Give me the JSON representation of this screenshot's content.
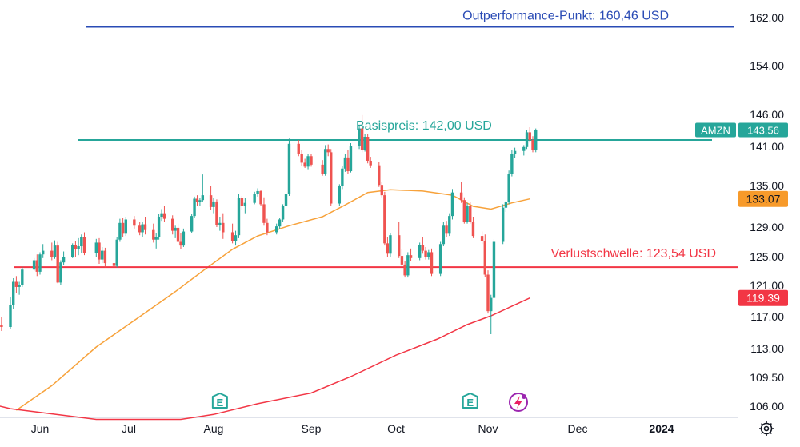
{
  "chart_data": {
    "type": "candlestick",
    "symbol": "AMZN",
    "last_price": "143.56",
    "y_axis": {
      "ticks": [
        "162.00",
        "154.00",
        "146.00",
        "141.00",
        "135.00",
        "129.00",
        "125.00",
        "121.00",
        "117.00",
        "113.00",
        "109.50",
        "106.00"
      ]
    },
    "x_axis": {
      "ticks": [
        {
          "label": "Jun",
          "date": "2023-06-01"
        },
        {
          "label": "Jul",
          "date": "2023-07-01"
        },
        {
          "label": "Aug",
          "date": "2023-08-01"
        },
        {
          "label": "Sep",
          "date": "2023-09-01"
        },
        {
          "label": "Oct",
          "date": "2023-10-01"
        },
        {
          "label": "Nov",
          "date": "2023-11-01"
        },
        {
          "label": "Dec",
          "date": "2023-12-01"
        },
        {
          "label": "2024",
          "date": "2024-01-01",
          "bold": true
        }
      ]
    },
    "levels": [
      {
        "label": "Outperformance-Punkt: 160,46 USD",
        "value": 160.46,
        "color": "#2a4bb5"
      },
      {
        "label": "Basispreis: 142,00 USD",
        "value": 142.0,
        "color": "#26a69a"
      },
      {
        "label": "Verlustschwelle: 123,54 USD",
        "value": 123.54,
        "color": "#f23645"
      }
    ],
    "moving_averages": [
      {
        "value_label": "133.07",
        "last": 133.07,
        "color": "#f7a23b",
        "points": [
          [
            "2023-05-24",
            105.5
          ],
          [
            "2023-06-05",
            108.5
          ],
          [
            "2023-06-20",
            113.2
          ],
          [
            "2023-07-05",
            117.0
          ],
          [
            "2023-07-18",
            120.2
          ],
          [
            "2023-07-28",
            123.0
          ],
          [
            "2023-08-07",
            126.0
          ],
          [
            "2023-08-15",
            127.8
          ],
          [
            "2023-08-25",
            129.2
          ],
          [
            "2023-09-05",
            130.5
          ],
          [
            "2023-09-13",
            132.2
          ],
          [
            "2023-09-21",
            134.0
          ],
          [
            "2023-09-29",
            134.4
          ],
          [
            "2023-10-10",
            134.2
          ],
          [
            "2023-10-20",
            133.6
          ],
          [
            "2023-10-27",
            132.0
          ],
          [
            "2023-11-02",
            131.6
          ],
          [
            "2023-11-09",
            132.5
          ],
          [
            "2023-11-15",
            133.07
          ]
        ]
      },
      {
        "value_label": "119.39",
        "last": 119.39,
        "color": "#f23645",
        "points": [
          [
            "2023-05-15",
            106.3
          ],
          [
            "2023-05-22",
            105.7
          ],
          [
            "2023-06-20",
            104.4
          ],
          [
            "2023-07-20",
            104.4
          ],
          [
            "2023-08-01",
            105.0
          ],
          [
            "2023-08-15",
            106.3
          ],
          [
            "2023-09-01",
            107.6
          ],
          [
            "2023-09-15",
            109.6
          ],
          [
            "2023-10-01",
            112.2
          ],
          [
            "2023-10-15",
            114.2
          ],
          [
            "2023-10-25",
            116.0
          ],
          [
            "2023-11-02",
            117.1
          ],
          [
            "2023-11-15",
            119.39
          ]
        ]
      }
    ],
    "earnings_markers": [
      {
        "label": "E",
        "date": "2023-08-03"
      },
      {
        "label": "E",
        "date": "2023-10-26"
      }
    ],
    "candles": [
      [
        "2023-05-11",
        119.5,
        120.6,
        118.0,
        118.3
      ],
      [
        "2023-05-12",
        118.3,
        118.9,
        116.5,
        117.0
      ],
      [
        "2023-05-15",
        117.0,
        117.8,
        115.5,
        116.0
      ],
      [
        "2023-05-16",
        116.0,
        117.2,
        114.0,
        114.5
      ],
      [
        "2023-05-17",
        114.5,
        115.8,
        113.6,
        115.2
      ],
      [
        "2023-05-18",
        115.2,
        116.5,
        114.5,
        116.0
      ],
      [
        "2023-05-19",
        116.0,
        117.0,
        115.2,
        115.7
      ],
      [
        "2023-05-22",
        115.7,
        119.5,
        115.5,
        118.5
      ],
      [
        "2023-05-23",
        118.5,
        122.0,
        118.0,
        121.5
      ],
      [
        "2023-05-24",
        121.5,
        122.3,
        120.0,
        120.8
      ],
      [
        "2023-05-25",
        120.8,
        121.5,
        119.8,
        121.0
      ],
      [
        "2023-05-26",
        121.0,
        123.6,
        120.8,
        123.2
      ],
      [
        "2023-05-30",
        123.2,
        124.8,
        123.0,
        124.5
      ],
      [
        "2023-05-31",
        124.5,
        125.3,
        122.3,
        122.9
      ],
      [
        "2023-06-01",
        122.9,
        125.6,
        122.5,
        125.3
      ],
      [
        "2023-06-02",
        125.3,
        126.7,
        124.8,
        125.8
      ],
      [
        "2023-06-05",
        125.8,
        126.9,
        124.5,
        124.9
      ],
      [
        "2023-06-06",
        124.9,
        127.2,
        124.7,
        126.5
      ],
      [
        "2023-06-07",
        126.5,
        127.0,
        121.3,
        121.4
      ],
      [
        "2023-06-08",
        121.4,
        124.5,
        121.0,
        124.2
      ],
      [
        "2023-06-09",
        124.2,
        125.7,
        123.8,
        124.9
      ],
      [
        "2023-06-12",
        124.9,
        126.8,
        124.8,
        126.6
      ],
      [
        "2023-06-13",
        126.6,
        127.1,
        125.0,
        126.0
      ],
      [
        "2023-06-14",
        126.0,
        127.5,
        125.2,
        126.4
      ],
      [
        "2023-06-15",
        126.4,
        128.0,
        125.5,
        127.7
      ],
      [
        "2023-06-16",
        127.7,
        128.3,
        125.2,
        125.5
      ],
      [
        "2023-06-20",
        125.5,
        127.4,
        125.0,
        126.9
      ],
      [
        "2023-06-21",
        126.9,
        127.5,
        124.0,
        124.6
      ],
      [
        "2023-06-22",
        124.6,
        126.3,
        124.1,
        125.8
      ],
      [
        "2023-06-23",
        125.8,
        126.2,
        123.5,
        124.1
      ],
      [
        "2023-06-26",
        124.1,
        125.0,
        123.2,
        123.7
      ],
      [
        "2023-06-27",
        123.7,
        127.6,
        123.5,
        127.3
      ],
      [
        "2023-06-28",
        127.3,
        130.2,
        127.0,
        129.6
      ],
      [
        "2023-06-29",
        129.6,
        130.3,
        127.6,
        128.1
      ],
      [
        "2023-06-30",
        128.1,
        130.5,
        127.8,
        130.1
      ],
      [
        "2023-07-03",
        130.1,
        130.6,
        128.8,
        129.2
      ],
      [
        "2023-07-05",
        129.2,
        129.8,
        127.9,
        128.3
      ],
      [
        "2023-07-06",
        128.3,
        129.8,
        127.6,
        129.4
      ],
      [
        "2023-07-07",
        129.4,
        130.5,
        128.0,
        128.6
      ],
      [
        "2023-07-10",
        128.6,
        129.5,
        126.9,
        127.3
      ],
      [
        "2023-07-11",
        127.3,
        128.2,
        126.1,
        127.6
      ],
      [
        "2023-07-12",
        127.6,
        130.9,
        127.3,
        130.5
      ],
      [
        "2023-07-13",
        130.5,
        131.6,
        129.9,
        131.0
      ],
      [
        "2023-07-14",
        131.0,
        132.1,
        129.8,
        130.2
      ],
      [
        "2023-07-17",
        130.2,
        130.7,
        128.0,
        128.5
      ],
      [
        "2023-07-18",
        128.5,
        129.2,
        127.5,
        128.9
      ],
      [
        "2023-07-19",
        128.9,
        129.5,
        126.6,
        127.0
      ],
      [
        "2023-07-20",
        127.0,
        128.2,
        126.0,
        126.5
      ],
      [
        "2023-07-21",
        126.5,
        128.8,
        126.3,
        128.4
      ],
      [
        "2023-07-24",
        128.4,
        130.9,
        128.2,
        130.6
      ],
      [
        "2023-07-25",
        130.6,
        133.4,
        130.3,
        133.1
      ],
      [
        "2023-07-26",
        133.1,
        133.6,
        132.0,
        132.6
      ],
      [
        "2023-07-27",
        132.6,
        133.2,
        132.0,
        132.9
      ],
      [
        "2023-07-28",
        132.9,
        136.7,
        132.6,
        133.6
      ],
      [
        "2023-07-31",
        133.6,
        135.0,
        131.5,
        131.9
      ],
      [
        "2023-08-01",
        131.9,
        133.2,
        131.0,
        132.7
      ],
      [
        "2023-08-02",
        132.7,
        133.0,
        129.0,
        129.3
      ],
      [
        "2023-08-03",
        129.3,
        130.5,
        128.5,
        129.6
      ],
      [
        "2023-08-04",
        129.6,
        131.0,
        127.4,
        128.3
      ],
      [
        "2023-08-07",
        128.3,
        129.5,
        126.8,
        127.1
      ],
      [
        "2023-08-08",
        127.1,
        128.5,
        126.5,
        127.9
      ],
      [
        "2023-08-09",
        127.9,
        133.8,
        127.5,
        133.2
      ],
      [
        "2023-08-10",
        133.2,
        133.5,
        131.5,
        132.0
      ],
      [
        "2023-08-11",
        132.0,
        133.2,
        131.0,
        132.5
      ],
      [
        "2023-08-14",
        132.5,
        134.1,
        132.3,
        133.8
      ],
      [
        "2023-08-15",
        133.8,
        134.6,
        133.4,
        134.2
      ],
      [
        "2023-08-16",
        134.2,
        134.3,
        132.0,
        132.3
      ],
      [
        "2023-08-17",
        132.3,
        133.3,
        129.2,
        129.6
      ],
      [
        "2023-08-18",
        129.6,
        130.2,
        127.9,
        128.3
      ],
      [
        "2023-08-21",
        128.3,
        129.5,
        128.0,
        129.1
      ],
      [
        "2023-08-22",
        129.1,
        130.3,
        128.8,
        130.1
      ],
      [
        "2023-08-23",
        130.1,
        132.3,
        129.8,
        132.0
      ],
      [
        "2023-08-24",
        132.0,
        134.1,
        131.5,
        133.8
      ],
      [
        "2023-08-25",
        133.8,
        142.2,
        133.5,
        141.4
      ],
      [
        "2023-08-28",
        141.4,
        142.0,
        139.5,
        139.9
      ],
      [
        "2023-08-29",
        139.9,
        140.4,
        138.0,
        138.5
      ],
      [
        "2023-08-30",
        138.5,
        139.1,
        137.7,
        137.9
      ],
      [
        "2023-08-31",
        137.9,
        139.8,
        137.5,
        139.5
      ],
      [
        "2023-09-01",
        139.5,
        139.8,
        137.9,
        138.2
      ],
      [
        "2023-09-05",
        138.2,
        138.9,
        136.5,
        136.8
      ],
      [
        "2023-09-06",
        136.8,
        141.2,
        136.5,
        140.6
      ],
      [
        "2023-09-07",
        140.6,
        141.3,
        139.5,
        140.1
      ],
      [
        "2023-09-08",
        140.1,
        140.6,
        132.1,
        132.4
      ],
      [
        "2023-09-11",
        132.4,
        135.2,
        132.1,
        134.9
      ],
      [
        "2023-09-12",
        134.9,
        138.0,
        134.5,
        137.6
      ],
      [
        "2023-09-13",
        137.6,
        139.8,
        137.1,
        139.3
      ],
      [
        "2023-09-14",
        139.3,
        140.5,
        136.8,
        137.2
      ],
      [
        "2023-09-15",
        137.2,
        141.5,
        137.0,
        141.0
      ],
      [
        "2023-09-18",
        141.0,
        144.2,
        140.6,
        143.8
      ],
      [
        "2023-09-19",
        143.8,
        145.9,
        140.1,
        140.5
      ],
      [
        "2023-09-20",
        140.5,
        142.9,
        140.2,
        142.5
      ],
      [
        "2023-09-21",
        142.5,
        143.0,
        138.4,
        138.8
      ],
      [
        "2023-09-22",
        138.8,
        139.4,
        137.7,
        138.1
      ],
      [
        "2023-09-25",
        138.1,
        138.6,
        134.8,
        135.1
      ],
      [
        "2023-09-26",
        135.1,
        135.6,
        133.3,
        133.6
      ],
      [
        "2023-09-27",
        133.6,
        134.1,
        126.5,
        126.8
      ],
      [
        "2023-09-28",
        126.8,
        127.6,
        125.0,
        125.4
      ],
      [
        "2023-09-29",
        125.4,
        128.2,
        125.0,
        127.9
      ],
      [
        "2023-10-02",
        127.9,
        129.8,
        124.8,
        125.1
      ],
      [
        "2023-10-03",
        125.1,
        126.0,
        123.6,
        123.9
      ],
      [
        "2023-10-04",
        123.9,
        124.4,
        122.1,
        122.4
      ],
      [
        "2023-10-05",
        122.4,
        125.6,
        122.1,
        125.2
      ],
      [
        "2023-10-06",
        125.2,
        126.1,
        124.4,
        124.8
      ],
      [
        "2023-10-09",
        124.8,
        126.9,
        124.5,
        126.6
      ],
      [
        "2023-10-10",
        126.6,
        127.6,
        125.4,
        125.8
      ],
      [
        "2023-10-11",
        125.8,
        126.3,
        124.6,
        124.9
      ],
      [
        "2023-10-12",
        124.9,
        125.9,
        124.6,
        125.6
      ],
      [
        "2023-10-13",
        125.6,
        126.1,
        122.3,
        122.6
      ],
      [
        "2023-10-16",
        122.6,
        127.0,
        122.3,
        126.7
      ],
      [
        "2023-10-17",
        126.7,
        129.7,
        126.4,
        129.2
      ],
      [
        "2023-10-18",
        129.2,
        129.9,
        127.7,
        128.1
      ],
      [
        "2023-10-19",
        128.1,
        131.0,
        127.8,
        130.6
      ],
      [
        "2023-10-20",
        130.6,
        134.5,
        130.1,
        134.0
      ],
      [
        "2023-10-23",
        134.0,
        135.6,
        132.5,
        132.9
      ],
      [
        "2023-10-24",
        132.9,
        133.3,
        129.5,
        129.8
      ],
      [
        "2023-10-25",
        129.8,
        132.5,
        129.5,
        132.1
      ],
      [
        "2023-10-26",
        132.1,
        132.6,
        129.5,
        129.8
      ],
      [
        "2023-10-27",
        129.8,
        130.5,
        127.5,
        127.8
      ],
      [
        "2023-10-30",
        127.8,
        128.4,
        126.7,
        127.1
      ],
      [
        "2023-10-31",
        127.1,
        128.0,
        122.2,
        122.5
      ],
      [
        "2023-11-01",
        122.5,
        123.1,
        117.4,
        117.7
      ],
      [
        "2023-11-02",
        117.7,
        119.8,
        114.8,
        119.4
      ],
      [
        "2023-11-03",
        119.4,
        127.4,
        119.1,
        127.0
      ],
      [
        "2023-11-06",
        127.0,
        132.3,
        126.7,
        131.8
      ],
      [
        "2023-11-07",
        131.8,
        132.8,
        131.2,
        132.6
      ],
      [
        "2023-11-08",
        132.6,
        137.3,
        132.3,
        136.8
      ],
      [
        "2023-11-09",
        136.8,
        140.4,
        136.4,
        139.9
      ],
      [
        "2023-11-10",
        139.9,
        140.8,
        139.2,
        140.3
      ],
      [
        "2023-11-13",
        140.3,
        141.2,
        139.6,
        140.9
      ],
      [
        "2023-11-14",
        140.9,
        143.6,
        140.6,
        143.2
      ],
      [
        "2023-11-15",
        143.2,
        144.0,
        141.6,
        142.0
      ],
      [
        "2023-11-16",
        142.0,
        142.6,
        140.1,
        140.5
      ],
      [
        "2023-11-17",
        140.5,
        143.8,
        140.1,
        143.56
      ]
    ]
  },
  "ui": {
    "settings_icon": "gear-icon",
    "bolt_icon": "lightning-icon"
  }
}
